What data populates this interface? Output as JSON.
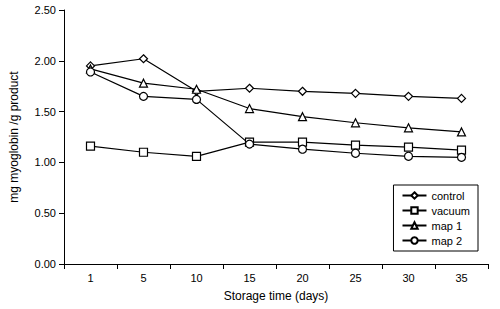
{
  "chart_data": {
    "type": "line",
    "x_label": "Storage time (days)",
    "y_label": "mg myoglobin /g product",
    "categories": [
      "1",
      "5",
      "10",
      "15",
      "20",
      "25",
      "30",
      "35"
    ],
    "series": [
      {
        "name": "control",
        "color": "#000000",
        "marker": "diamond",
        "values": [
          1.95,
          2.02,
          1.7,
          1.73,
          1.7,
          1.68,
          1.65,
          1.63
        ]
      },
      {
        "name": "vacuum",
        "color": "#000000",
        "marker": "square",
        "values": [
          1.16,
          1.1,
          1.06,
          1.2,
          1.2,
          1.17,
          1.15,
          1.12
        ]
      },
      {
        "name": "map 1",
        "color": "#000000",
        "marker": "triangle",
        "values": [
          1.92,
          1.78,
          1.72,
          1.53,
          1.45,
          1.39,
          1.34,
          1.3
        ]
      },
      {
        "name": "map 2",
        "color": "#000000",
        "marker": "circle",
        "values": [
          1.89,
          1.65,
          1.62,
          1.18,
          1.13,
          1.09,
          1.06,
          1.05
        ]
      }
    ],
    "ylim": [
      0,
      2.5
    ],
    "yticks": [
      {
        "value": 0,
        "label": "0.00"
      },
      {
        "value": 0.5,
        "label": "0.50"
      },
      {
        "value": 1,
        "label": "1.00"
      },
      {
        "value": 1.5,
        "label": "1.50"
      },
      {
        "value": 2,
        "label": "2.00"
      },
      {
        "value": 2.5,
        "label": "2.50"
      }
    ],
    "grid": false,
    "legend": "lower right"
  }
}
